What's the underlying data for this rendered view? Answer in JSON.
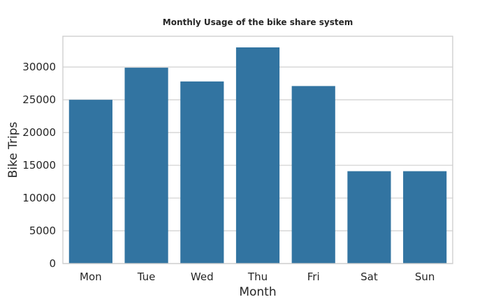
{
  "chart_data": {
    "type": "bar",
    "title": "Monthly Usage of the bike share system",
    "xlabel": "Month",
    "ylabel": "Bike Trips",
    "categories": [
      "Mon",
      "Tue",
      "Wed",
      "Thu",
      "Fri",
      "Sat",
      "Sun"
    ],
    "values": [
      25000,
      29900,
      27800,
      33000,
      27100,
      14100,
      14100
    ],
    "ylim": [
      0,
      34700
    ],
    "yticks": [
      "0",
      "5000",
      "10000",
      "15000",
      "20000",
      "25000",
      "30000"
    ],
    "grid": "horizontal",
    "bar_color": "#3274a1"
  }
}
